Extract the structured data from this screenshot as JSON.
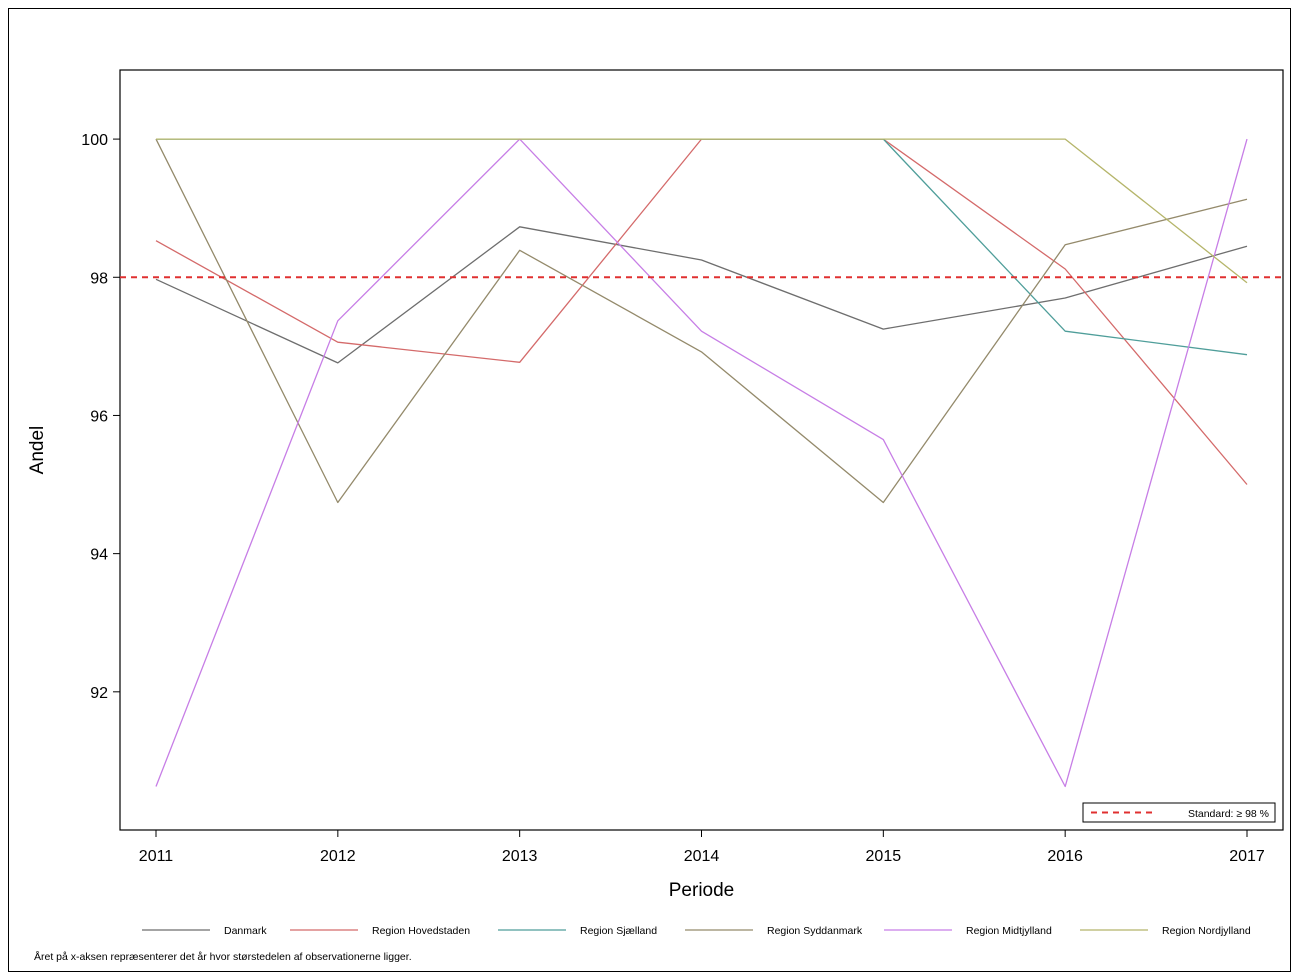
{
  "chart_data": {
    "type": "line",
    "title": "",
    "xlabel": "Periode",
    "ylabel": "Andel",
    "x": [
      2011,
      2012,
      2013,
      2014,
      2015,
      2016,
      2017
    ],
    "ylim": [
      90,
      101
    ],
    "yticks": [
      92,
      94,
      96,
      98,
      100
    ],
    "grid": false,
    "legend_position": "bottom",
    "series": [
      {
        "name": "Danmark",
        "color": "#6e6e6e",
        "values": [
          97.97,
          96.76,
          98.73,
          98.25,
          97.25,
          97.7,
          98.45
        ]
      },
      {
        "name": "Region Hovedstaden",
        "color": "#d46a6a",
        "values": [
          98.53,
          97.06,
          96.77,
          100,
          100,
          98.12,
          95.0
        ]
      },
      {
        "name": "Region Sjælland",
        "color": "#4f9e9a",
        "values": [
          100,
          100,
          100,
          100,
          100,
          97.22,
          96.88
        ]
      },
      {
        "name": "Region Syddanmark",
        "color": "#948a6b",
        "values": [
          100,
          94.74,
          98.39,
          96.92,
          94.74,
          98.47,
          99.13
        ]
      },
      {
        "name": "Region Midtjylland",
        "color": "#c77ee6",
        "values": [
          90.63,
          97.37,
          100,
          97.22,
          95.65,
          90.63,
          100
        ]
      },
      {
        "name": "Region Nordjylland",
        "color": "#b5b56a",
        "values": [
          100,
          100,
          100,
          100,
          100,
          100,
          97.92
        ]
      }
    ],
    "reference_line": {
      "value": 98,
      "label": "Standard: ≥ 98 %",
      "color": "#e03030"
    }
  },
  "footnote": "Året på x-aksen repræsenterer det år hvor størstedelen af observationerne ligger."
}
